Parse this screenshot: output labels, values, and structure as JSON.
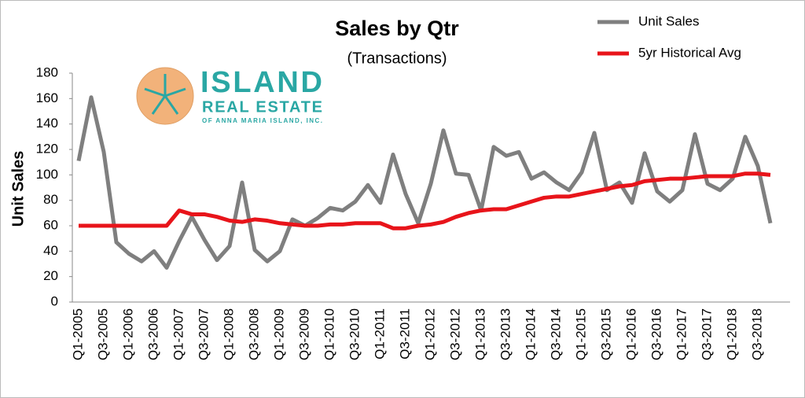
{
  "chart_data": {
    "type": "line",
    "title": "Sales by Qtr",
    "subtitle": "(Transactions)",
    "y_label": "Unit Sales",
    "categories": [
      "Q1-2005",
      null,
      "Q3-2005",
      null,
      "Q1-2006",
      null,
      "Q3-2006",
      null,
      "Q1-2007",
      null,
      "Q3-2007",
      null,
      "Q1-2008",
      null,
      "Q3-2008",
      null,
      "Q1-2009",
      null,
      "Q3-2009",
      null,
      "Q1-2010",
      null,
      "Q3-2010",
      null,
      "Q1-2011",
      null,
      "Q3-2011",
      null,
      "Q1-2012",
      null,
      "Q3-2012",
      null,
      "Q1-2013",
      null,
      "Q3-2013",
      null,
      "Q1-2014",
      null,
      "Q3-2014",
      null,
      "Q1-2015",
      null,
      "Q3-2015",
      null,
      "Q1-2016",
      null,
      "Q3-2016",
      null,
      "Q1-2017",
      null,
      "Q3-2017",
      null,
      "Q1-2018",
      null,
      "Q3-2018",
      null
    ],
    "series": [
      {
        "name": "Unit Sales",
        "color": "#7f7f7f",
        "values": [
          111,
          161,
          118,
          47,
          38,
          32,
          40,
          27,
          48,
          67,
          49,
          33,
          44,
          94,
          41,
          32,
          40,
          65,
          60,
          66,
          74,
          72,
          79,
          92,
          78,
          116,
          85,
          62,
          93,
          135,
          101,
          100,
          72,
          122,
          115,
          118,
          97,
          102,
          94,
          88,
          102,
          133,
          88,
          94,
          78,
          117,
          87,
          79,
          88,
          132,
          93,
          88,
          97,
          130,
          107,
          62
        ]
      },
      {
        "name": "5yr Historical Avg",
        "color": "#e8141a",
        "values": [
          60,
          60,
          60,
          60,
          60,
          60,
          60,
          60,
          72,
          69,
          69,
          67,
          64,
          63,
          65,
          64,
          62,
          61,
          60,
          60,
          61,
          61,
          62,
          62,
          62,
          58,
          58,
          60,
          61,
          63,
          67,
          70,
          72,
          73,
          73,
          76,
          79,
          82,
          83,
          83,
          85,
          87,
          89,
          91,
          92,
          95,
          96,
          97,
          97,
          98,
          99,
          99,
          99,
          101,
          101,
          100
        ]
      }
    ],
    "ylim": [
      0,
      180
    ],
    "yticks": [
      0,
      20,
      40,
      60,
      80,
      100,
      120,
      140,
      160,
      180
    ],
    "grid": false,
    "legend": "top-right"
  },
  "logo": {
    "line1": "ISLAND",
    "line2": "REAL ESTATE",
    "line3": "OF ANNA MARIA ISLAND, INC."
  }
}
